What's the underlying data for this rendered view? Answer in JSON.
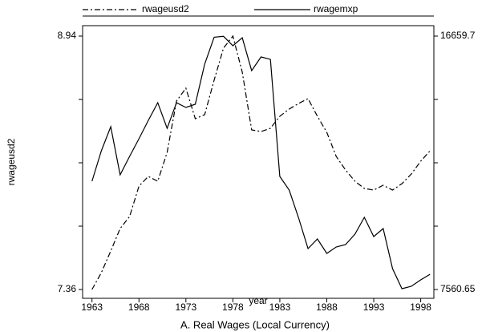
{
  "chart_data": {
    "type": "line",
    "title": "A. Real Wages (Local Currency)",
    "x_label": "year",
    "y_label": "rwageusd2",
    "x": [
      1963,
      1964,
      1965,
      1966,
      1967,
      1968,
      1969,
      1970,
      1971,
      1972,
      1973,
      1974,
      1975,
      1976,
      1977,
      1978,
      1979,
      1980,
      1981,
      1982,
      1983,
      1984,
      1985,
      1986,
      1987,
      1988,
      1989,
      1990,
      1991,
      1992,
      1993,
      1994,
      1995,
      1996,
      1997,
      1998,
      1999
    ],
    "series": [
      {
        "name": "rwageusd2",
        "color": "#000000",
        "dash": "dash-dot",
        "values": [
          7.36,
          7.465,
          7.6,
          7.74,
          7.815,
          8.005,
          8.065,
          8.035,
          8.215,
          8.535,
          8.615,
          8.425,
          8.45,
          8.665,
          8.865,
          8.94,
          8.715,
          8.355,
          8.345,
          8.365,
          8.44,
          8.485,
          8.52,
          8.55,
          8.44,
          8.34,
          8.19,
          8.105,
          8.035,
          7.99,
          7.98,
          8.01,
          7.98,
          8.02,
          8.08,
          8.16,
          8.225
        ]
      },
      {
        "name": "rwagemxp",
        "color": "#000000",
        "dash": "solid",
        "axis": "y2",
        "values": [
          11447,
          12541,
          13405,
          11678,
          12340,
          12973,
          13635,
          14268,
          13347,
          14268,
          14096,
          14211,
          15651,
          16620,
          16650,
          16313,
          16600,
          15420,
          15910,
          15823,
          11620,
          11130,
          10123,
          9029,
          9374,
          8856,
          9086,
          9173,
          9547,
          10152,
          9461,
          9749,
          8309,
          7590,
          7676,
          7906,
          8108
        ]
      }
    ],
    "xlim": [
      1962,
      1999.4
    ],
    "xticks": [
      1963,
      1968,
      1973,
      1978,
      1983,
      1988,
      1993,
      1998
    ],
    "ylim": [
      7.305,
      9.005
    ],
    "yticks": [
      7.36,
      8.94
    ],
    "y2lim": [
      7244,
      17034
    ],
    "y2ticks": [
      7560.65,
      16659.7
    ],
    "legend": "top"
  }
}
